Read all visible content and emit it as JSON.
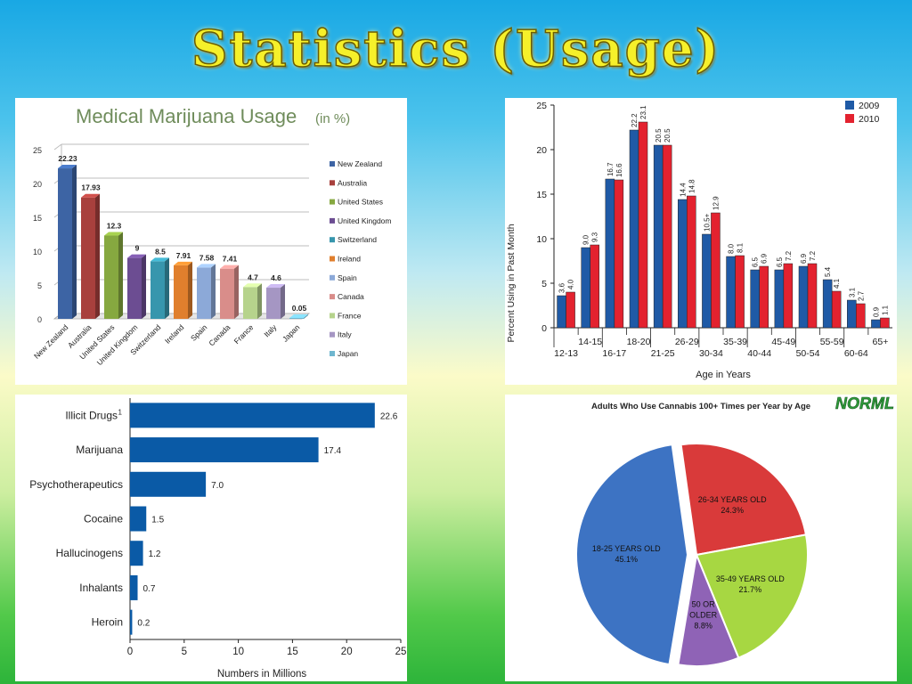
{
  "slide": {
    "title": "Statistics (Usage)"
  },
  "chart_data": [
    {
      "type": "bar",
      "title": "Medical Marijuana Usage",
      "title_suffix": "(in %)",
      "categories": [
        "New Zealand",
        "Australia",
        "United States",
        "United Kingdom",
        "Switzerland",
        "Ireland",
        "Spain",
        "Canada",
        "France",
        "Italy",
        "Japan"
      ],
      "values": [
        22.23,
        17.93,
        12.3,
        9,
        8.5,
        7.91,
        7.58,
        7.41,
        4.7,
        4.6,
        0.05
      ],
      "value_labels": [
        "22.23",
        "17.93",
        "12.3",
        "9",
        "8.5",
        "7.91",
        "7.58",
        "7.41",
        "4.7",
        "4.6",
        "0.05"
      ],
      "colors": [
        "#3d64a4",
        "#a8403d",
        "#86a840",
        "#6c4d92",
        "#3796ad",
        "#e07f2d",
        "#8ca9d8",
        "#d98d8a",
        "#b6d38c",
        "#a596c3",
        "#6fb6cf"
      ],
      "ylim": [
        0,
        25
      ],
      "yticks": [
        "0",
        "5",
        "10",
        "15",
        "20",
        "25"
      ],
      "legend": "right"
    },
    {
      "type": "bar",
      "title": "",
      "xlabel": "Age in Years",
      "ylabel": "Percent Using in Past Month",
      "categories": [
        "12-13",
        "14-15",
        "16-17",
        "18-20",
        "21-25",
        "26-29",
        "30-34",
        "35-39",
        "40-44",
        "45-49",
        "50-54",
        "55-59",
        "60-64",
        "65+"
      ],
      "series": [
        {
          "name": "2009",
          "color": "#1f5aa6",
          "values": [
            3.6,
            9.0,
            16.7,
            22.2,
            20.5,
            14.4,
            10.5,
            8.0,
            6.5,
            6.5,
            6.9,
            5.4,
            3.1,
            0.9
          ],
          "labels": [
            "3.6",
            "9.0",
            "16.7",
            "22.2",
            "20.5",
            "14.4",
            "10.5+",
            "8.0",
            "6.5",
            "6.5",
            "6.9",
            "5.4",
            "3.1",
            "0.9"
          ]
        },
        {
          "name": "2010",
          "color": "#e3222f",
          "values": [
            4.0,
            9.3,
            16.6,
            23.1,
            20.5,
            14.8,
            12.9,
            8.1,
            6.9,
            7.2,
            7.2,
            4.1,
            2.7,
            1.1
          ],
          "labels": [
            "4.0",
            "9.3",
            "16.6",
            "23.1",
            "20.5",
            "14.8",
            "12.9",
            "8.1",
            "6.9",
            "7.2",
            "7.2",
            "4.1",
            "2.7",
            "1.1"
          ]
        }
      ],
      "ylim": [
        0,
        25
      ],
      "yticks": [
        "0",
        "5",
        "10",
        "15",
        "20",
        "25"
      ],
      "legend": "top-right"
    },
    {
      "type": "bar",
      "orientation": "horizontal",
      "xlabel": "Numbers in Millions",
      "categories": [
        "Illicit Drugs",
        "Marijuana",
        "Psychotherapeutics",
        "Cocaine",
        "Hallucinogens",
        "Inhalants",
        "Heroin"
      ],
      "values": [
        22.6,
        17.4,
        7.0,
        1.5,
        1.2,
        0.7,
        0.2
      ],
      "value_labels": [
        "22.6",
        "17.4",
        "7.0",
        "1.5",
        "1.2",
        "0.7",
        "0.2"
      ],
      "footnote_marker": "1",
      "color": "#0a5aa6",
      "xlim": [
        0,
        25
      ],
      "xticks": [
        "0",
        "5",
        "10",
        "15",
        "20",
        "25"
      ]
    },
    {
      "type": "pie",
      "title": "Adults Who Use Cannabis 100+ Times per Year by Age",
      "logo": "NORML",
      "slices": [
        {
          "label": "26-34 YEARS OLD",
          "value": 24.3,
          "pct": "24.3%",
          "color": "#d93a3a"
        },
        {
          "label": "35-49 YEARS OLD",
          "value": 21.7,
          "pct": "21.7%",
          "color": "#a7d742"
        },
        {
          "label": "50 OR OLDER",
          "value": 8.8,
          "pct": "8.8%",
          "color": "#8f63b6"
        },
        {
          "label": "18-25 YEARS OLD",
          "value": 45.1,
          "pct": "45.1%",
          "color": "#3d73c3"
        }
      ]
    }
  ]
}
